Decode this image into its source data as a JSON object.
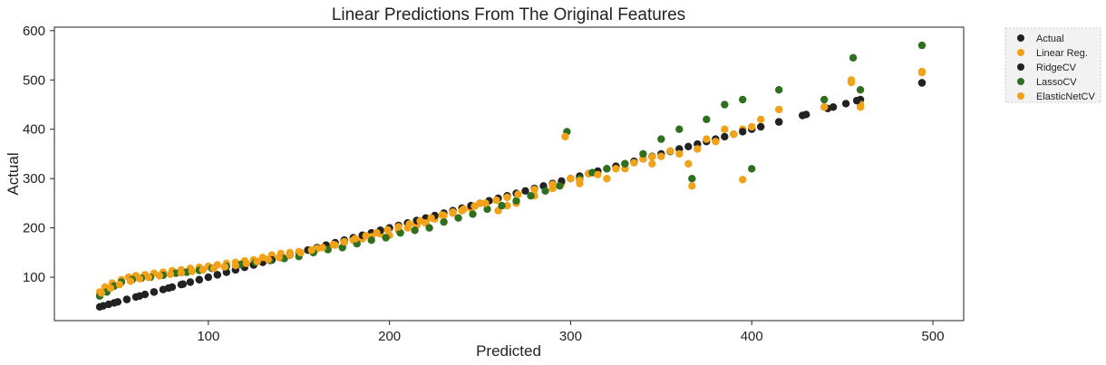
{
  "chart_data": {
    "type": "scatter",
    "title": "Linear Predictions From The Original Features",
    "xlabel": "Predicted",
    "ylabel": "Actual",
    "xlim": [
      15,
      517
    ],
    "ylim": [
      12,
      607
    ],
    "xticks": [
      100,
      200,
      300,
      400,
      500
    ],
    "yticks": [
      100,
      200,
      300,
      400,
      500,
      600
    ],
    "grid": false,
    "legend_position": "outside-right",
    "colors": {
      "actual": "#222222",
      "linear": "#f0a21a",
      "ridge": "#222222",
      "lasso": "#2f6f1f",
      "elastic": "#f0a21a"
    },
    "series": [
      {
        "name": "Actual",
        "marker_color": "#222222",
        "x": [
          40,
          45,
          50,
          55,
          60,
          65,
          70,
          75,
          80,
          85,
          90,
          95,
          100,
          105,
          110,
          115,
          120,
          125,
          130,
          135,
          140,
          145,
          150,
          155,
          160,
          165,
          170,
          175,
          180,
          185,
          190,
          195,
          200,
          210,
          220,
          230,
          240,
          250,
          260,
          270,
          280,
          290,
          300,
          310,
          320,
          330,
          340,
          350,
          360,
          370,
          380,
          390,
          400,
          415,
          428,
          442,
          452,
          460,
          494
        ],
        "y": [
          40,
          45,
          50,
          55,
          60,
          65,
          70,
          75,
          80,
          85,
          90,
          95,
          100,
          105,
          110,
          115,
          120,
          125,
          130,
          135,
          140,
          145,
          150,
          155,
          160,
          165,
          170,
          175,
          180,
          185,
          190,
          195,
          200,
          210,
          220,
          230,
          240,
          250,
          260,
          270,
          280,
          290,
          300,
          310,
          320,
          330,
          340,
          350,
          360,
          370,
          380,
          390,
          400,
          415,
          428,
          442,
          452,
          460,
          494
        ]
      },
      {
        "name": "Linear Reg.",
        "marker_color": "#f0a21a",
        "x": [
          40,
          43,
          47,
          52,
          56,
          60,
          65,
          70,
          75,
          80,
          85,
          90,
          95,
          100,
          105,
          110,
          115,
          120,
          125,
          130,
          135,
          140,
          145,
          150,
          155,
          160,
          165,
          170,
          175,
          180,
          185,
          190,
          195,
          200,
          205,
          210,
          215,
          220,
          225,
          230,
          235,
          240,
          245,
          250,
          260,
          265,
          270,
          280,
          290,
          295,
          300,
          305,
          310,
          320,
          330,
          340,
          345,
          350,
          360,
          365,
          370,
          380,
          390,
          395,
          400,
          415,
          440,
          455,
          460,
          494
        ],
        "y": [
          70,
          80,
          88,
          95,
          100,
          103,
          105,
          108,
          110,
          113,
          115,
          118,
          120,
          122,
          125,
          128,
          130,
          133,
          135,
          140,
          145,
          148,
          150,
          152,
          155,
          158,
          162,
          165,
          170,
          175,
          178,
          182,
          188,
          185,
          195,
          200,
          205,
          210,
          218,
          225,
          230,
          235,
          240,
          250,
          235,
          245,
          250,
          265,
          280,
          290,
          300,
          290,
          310,
          300,
          320,
          340,
          330,
          345,
          350,
          330,
          360,
          375,
          390,
          400,
          405,
          440,
          445,
          495,
          450,
          515
        ]
      },
      {
        "name": "RidgeCV",
        "marker_color": "#222222",
        "x": [
          42,
          48,
          55,
          62,
          70,
          78,
          86,
          95,
          105,
          115,
          125,
          135,
          145,
          155,
          165,
          175,
          185,
          195,
          205,
          215,
          225,
          235,
          245,
          255,
          265,
          275,
          285,
          295,
          305,
          315,
          325,
          335,
          345,
          355,
          365,
          375,
          385,
          395,
          405,
          415,
          430,
          445,
          458,
          494
        ],
        "y": [
          42,
          48,
          55,
          62,
          70,
          78,
          86,
          95,
          105,
          115,
          125,
          135,
          145,
          155,
          165,
          175,
          185,
          195,
          205,
          215,
          225,
          235,
          245,
          255,
          265,
          275,
          285,
          295,
          305,
          315,
          325,
          335,
          345,
          355,
          365,
          375,
          385,
          395,
          405,
          415,
          430,
          445,
          458,
          494
        ]
      },
      {
        "name": "LassoCV",
        "marker_color": "#2f6f1f",
        "x": [
          40,
          44,
          48,
          52,
          58,
          63,
          68,
          75,
          82,
          88,
          95,
          102,
          110,
          118,
          126,
          134,
          142,
          150,
          158,
          166,
          174,
          182,
          190,
          198,
          206,
          214,
          222,
          230,
          238,
          246,
          254,
          262,
          270,
          278,
          286,
          294,
          298,
          305,
          312,
          320,
          330,
          340,
          350,
          360,
          367,
          375,
          385,
          395,
          400,
          415,
          440,
          456,
          460,
          494
        ],
        "y": [
          62,
          70,
          82,
          90,
          95,
          98,
          100,
          104,
          108,
          110,
          114,
          118,
          122,
          126,
          130,
          134,
          138,
          142,
          150,
          156,
          160,
          168,
          175,
          180,
          190,
          195,
          200,
          212,
          220,
          228,
          238,
          245,
          255,
          265,
          275,
          285,
          395,
          300,
          312,
          320,
          330,
          350,
          380,
          400,
          300,
          420,
          450,
          460,
          320,
          480,
          460,
          545,
          480,
          570
        ]
      },
      {
        "name": "ElasticNetCV",
        "marker_color": "#f0a21a",
        "x": [
          41,
          46,
          51,
          57,
          62,
          67,
          73,
          79,
          85,
          91,
          97,
          103,
          109,
          115,
          121,
          127,
          133,
          139,
          145,
          151,
          157,
          163,
          169,
          175,
          181,
          187,
          193,
          199,
          205,
          211,
          217,
          223,
          229,
          235,
          241,
          247,
          253,
          259,
          265,
          271,
          280,
          290,
          297,
          305,
          315,
          325,
          335,
          345,
          355,
          367,
          375,
          385,
          395,
          405,
          415,
          440,
          455,
          460,
          494
        ],
        "y": [
          68,
          78,
          85,
          92,
          97,
          100,
          103,
          106,
          109,
          112,
          115,
          118,
          121,
          124,
          128,
          132,
          136,
          140,
          145,
          150,
          155,
          160,
          166,
          172,
          178,
          184,
          190,
          196,
          202,
          208,
          214,
          220,
          226,
          232,
          238,
          244,
          250,
          256,
          262,
          268,
          278,
          288,
          385,
          296,
          308,
          320,
          332,
          344,
          356,
          285,
          380,
          400,
          298,
          420,
          440,
          445,
          500,
          445,
          517
        ]
      }
    ]
  }
}
